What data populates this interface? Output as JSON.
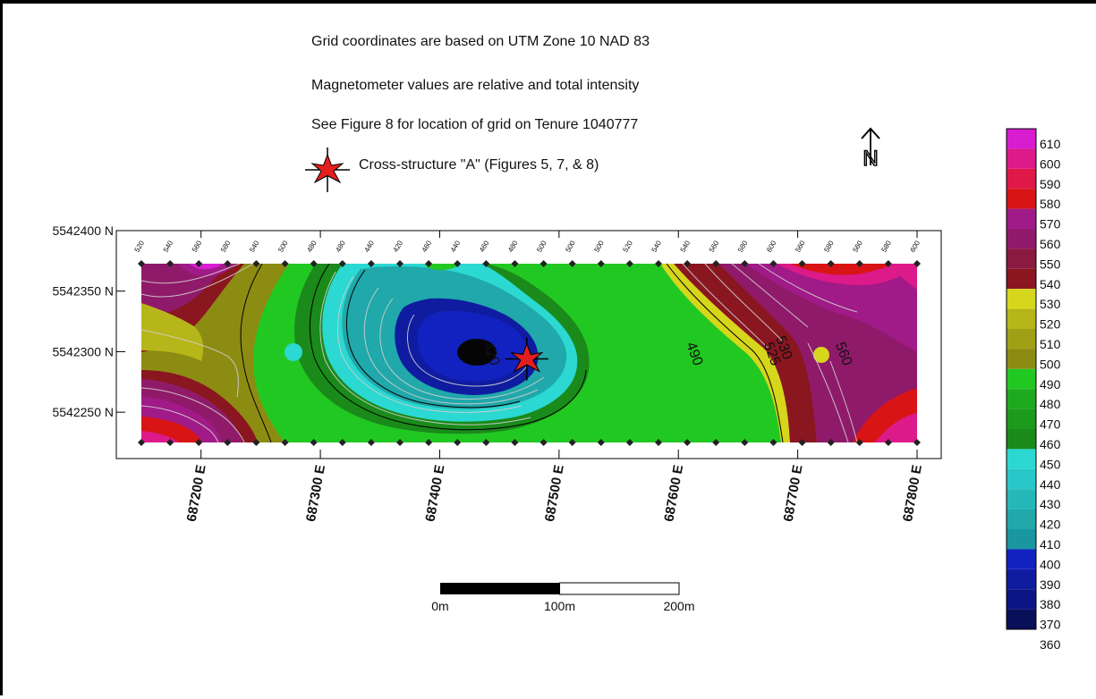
{
  "notes": {
    "line1": "Grid coordinates are based on UTM Zone 10 NAD 83",
    "line2": "Magnetometer values are relative and total intensity",
    "line3": "See Figure 8 for location of grid on Tenure 1040777"
  },
  "legend": {
    "star_label": "Cross-structure \"A\" (Figures 5, 7, & 8)",
    "star_icon": "red-star-cross-icon",
    "north_icon": "north-arrow-icon",
    "north_letter": "N"
  },
  "map": {
    "northing_labels": [
      "5542400 N",
      "5542350 N",
      "5542300 N",
      "5542250 N"
    ],
    "northing_values": [
      5542400,
      5542350,
      5542300,
      5542250
    ],
    "easting_labels": [
      "687200 E",
      "687300 E",
      "687400 E",
      "687500 E",
      "687600 E",
      "687700 E",
      "687800 E"
    ],
    "easting_values": [
      687200,
      687300,
      687400,
      687500,
      687600,
      687700,
      687800
    ],
    "x_range": [
      687150,
      687800
    ],
    "y_range": [
      5542225,
      5542400
    ],
    "station_readings": [
      "520",
      "540",
      "560",
      "580",
      "540",
      "500",
      "480",
      "480",
      "440",
      "420",
      "460",
      "440",
      "460",
      "480",
      "500",
      "500",
      "500",
      "520",
      "540",
      "540",
      "560",
      "580",
      "600",
      "560",
      "580",
      "560",
      "580",
      "600"
    ],
    "contour_labels": [
      {
        "text": "420",
        "x": 687440,
        "y": 5542297
      },
      {
        "text": "490",
        "x": 687610,
        "y": 5542297
      },
      {
        "text": "525",
        "x": 687675,
        "y": 5542297
      },
      {
        "text": "530",
        "x": 687685,
        "y": 5542302
      },
      {
        "text": "560",
        "x": 687735,
        "y": 5542297
      }
    ],
    "cross_structure_location": {
      "x": 687473,
      "y": 5542294
    }
  },
  "scale_bar": {
    "labels": [
      "0m",
      "100m",
      "200m"
    ],
    "values": [
      0,
      100,
      200
    ]
  },
  "colorbar": {
    "labels": [
      "610",
      "600",
      "590",
      "580",
      "570",
      "560",
      "550",
      "540",
      "530",
      "520",
      "510",
      "500",
      "490",
      "480",
      "470",
      "460",
      "450",
      "440",
      "430",
      "420",
      "410",
      "400",
      "390",
      "380",
      "370",
      "360"
    ],
    "colors": {
      "360": "#050505",
      "370": "#0a0f5a",
      "380": "#0d1585",
      "390": "#0f1ca0",
      "400": "#1222c0",
      "410": "#1a96a0",
      "420": "#20a8aa",
      "430": "#26b8b8",
      "440": "#28c8c8",
      "450": "#2bd8d2",
      "460": "#1a8a1a",
      "470": "#1c9a1c",
      "480": "#1eaa1e",
      "490": "#22c822",
      "500": "#8c8c12",
      "510": "#a0a016",
      "520": "#b6b61a",
      "530": "#d6d61c",
      "540": "#8a1620",
      "550": "#8a1a40",
      "560": "#901a6a",
      "570": "#a01a88",
      "580": "#d81414",
      "590": "#e0184a",
      "600": "#dc1a8a",
      "610": "#d81cd0"
    }
  }
}
